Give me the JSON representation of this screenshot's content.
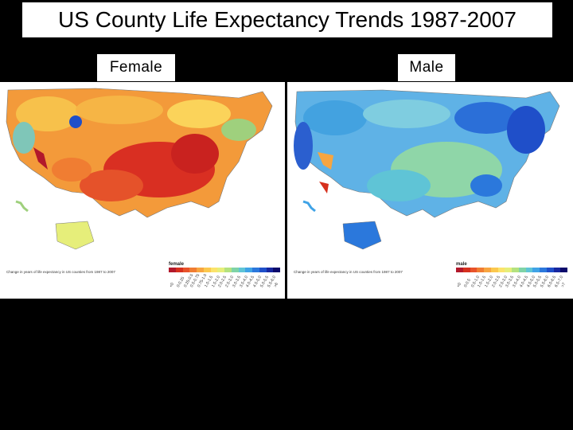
{
  "slide": {
    "title": "US County Life Expectancy Trends 1987-2007"
  },
  "panels": [
    {
      "label": "Female",
      "caption": "Change in years of life expectancy in US counties from 1987 to 2007",
      "legend_title": "female",
      "legend_colors": [
        "#b2182b",
        "#d6301e",
        "#e8532a",
        "#f07d32",
        "#f7a540",
        "#fbc84e",
        "#fbe36b",
        "#e6ee7a",
        "#b4e27f",
        "#7fd3a7",
        "#5fc4d6",
        "#40a3e6",
        "#2b78dc",
        "#1f4fc9",
        "#17279f",
        "#0c0a6b"
      ],
      "legend_ticks": [
        "<0",
        "0-0.25",
        "0.25-0.5",
        "0.5-0.75",
        "0.75-1.0",
        "1.0-1.5",
        "1.5-2.0",
        "2.0-2.5",
        "2.5-3.0",
        "3.0-3.5",
        "3.5-4.0",
        "4.0-4.5",
        "4.5-5.0",
        "5.0-5.5",
        "5.5-6.0",
        ">6"
      ]
    },
    {
      "label": "Male",
      "caption": "Change in years of life expectancy in US counties from 1987 to 2007",
      "legend_title": "male",
      "legend_colors": [
        "#b2182b",
        "#d6301e",
        "#e8532a",
        "#f07d32",
        "#f7a540",
        "#fbc84e",
        "#fbe36b",
        "#e6ee7a",
        "#b4e27f",
        "#7fd3a7",
        "#5fc4d6",
        "#40a3e6",
        "#2b78dc",
        "#1f4fc9",
        "#17279f",
        "#0c0a6b"
      ],
      "legend_ticks": [
        "<0",
        "0-0.5",
        "0.5-1.0",
        "1.0-1.5",
        "1.5-2.0",
        "2.0-2.5",
        "2.5-3.0",
        "3.0-3.5",
        "3.5-4.0",
        "4.0-4.5",
        "4.5-5.0",
        "5.0-5.5",
        "5.5-6.0",
        "6.0-6.5",
        "6.5-7.0",
        ">7"
      ]
    }
  ]
}
